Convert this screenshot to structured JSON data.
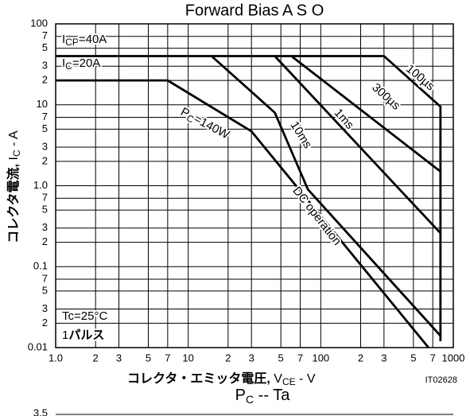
{
  "chart_data": [
    {
      "type": "line",
      "title": "Forward Bias A S O",
      "x_label": {
        "main": "コレクタ・エミッタ電圧,",
        "v": " V",
        "sub": "CE",
        "rest": " - V"
      },
      "y_label": {
        "main": "コレクタ電流,",
        "i": " I",
        "sub": "C",
        "rest": " - A"
      },
      "figure_code": "IT02628",
      "log_x": true,
      "log_y": true,
      "grid": true,
      "color": "#000000",
      "xlim": [
        1,
        1000
      ],
      "ylim": [
        0.01,
        100
      ],
      "xticks": [
        {
          "value": 1,
          "label": "1.0"
        },
        2,
        3,
        5,
        7,
        10,
        {
          "value": 20,
          "label": "2"
        },
        {
          "value": 30,
          "label": "3"
        },
        {
          "value": 50,
          "label": "5"
        },
        {
          "value": 70,
          "label": "7"
        },
        100,
        {
          "value": 200,
          "label": "2"
        },
        {
          "value": 300,
          "label": "3"
        },
        {
          "value": 500,
          "label": "5"
        },
        {
          "value": 700,
          "label": "7"
        },
        1000
      ],
      "yticks": [
        100,
        {
          "value": 70,
          "label": "7"
        },
        {
          "value": 50,
          "label": "5"
        },
        {
          "value": 30,
          "label": "3"
        },
        {
          "value": 20,
          "label": "2"
        },
        10,
        7,
        5,
        3,
        2,
        {
          "value": 1,
          "label": "1.0"
        },
        {
          "value": 0.7,
          "label": "7"
        },
        {
          "value": 0.5,
          "label": "5"
        },
        {
          "value": 0.3,
          "label": "3"
        },
        {
          "value": 0.2,
          "label": "2"
        },
        0.1,
        {
          "value": 0.07,
          "label": "7"
        },
        {
          "value": 0.05,
          "label": "5"
        },
        {
          "value": 0.03,
          "label": "3"
        },
        {
          "value": 0.02,
          "label": "2"
        },
        0.01
      ],
      "series": [
        {
          "name": "100µs",
          "x": [
            1,
            300,
            800,
            800
          ],
          "values": [
            40,
            40,
            9.5,
            0.012
          ]
        },
        {
          "name": "300µs",
          "x": [
            60,
            800
          ],
          "values": [
            40,
            1.5
          ]
        },
        {
          "name": "1ms",
          "x": [
            45,
            800
          ],
          "values": [
            40,
            0.26
          ]
        },
        {
          "name": "10ms",
          "x": [
            15,
            45,
            80,
            800
          ],
          "values": [
            40,
            8,
            0.9,
            0.014
          ]
        },
        {
          "name": "DC operation",
          "x": [
            1,
            7,
            30,
            650
          ],
          "values": [
            20,
            20,
            4.7,
            0.01
          ]
        }
      ],
      "annotations": [
        {
          "main": "I",
          "sub": "CP",
          "rest": "=40A"
        },
        {
          "main": "I",
          "sub": "C",
          "rest": "=20A"
        },
        {
          "main": "P",
          "sub": "C",
          "rest": "=140W"
        },
        {
          "main": "Tc=25°C"
        },
        {
          "main": "1",
          "rest": "パルス"
        }
      ]
    },
    {
      "type": "line",
      "title": {
        "main": "P",
        "sub": "C",
        "rest": " -- Ta"
      },
      "yticks": [
        3.5
      ]
    }
  ]
}
